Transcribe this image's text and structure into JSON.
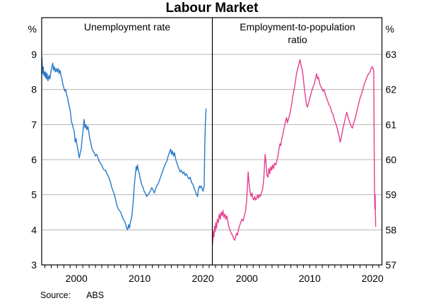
{
  "title": "Labour Market",
  "source": {
    "label": "Source:",
    "value": "ABS"
  },
  "left_axis": {
    "unit": "%",
    "ticks": [
      9,
      8,
      7,
      6,
      5,
      4,
      3
    ]
  },
  "right_axis": {
    "unit": "%",
    "ticks": [
      63,
      62,
      61,
      60,
      59,
      58,
      57
    ]
  },
  "panels": [
    {
      "title": "Unemployment rate",
      "color": "#2878c8"
    },
    {
      "title": "Employment-to-population ratio",
      "color": "#e63d8f"
    }
  ],
  "style": {
    "grid_color": "#b5b5b5",
    "axis_color": "#000000"
  },
  "chart_data": [
    {
      "type": "line",
      "title": "Unemployment rate",
      "ylabel": "%",
      "color": "#2878c8",
      "x_range": [
        1994.5,
        2021.5
      ],
      "y_range": [
        3,
        9
      ],
      "y_ticks": [
        3,
        4,
        5,
        6,
        7,
        8,
        9
      ],
      "x_label_years": [
        2000,
        2010,
        2020
      ],
      "x_tick_interval": 1,
      "grid": true,
      "points": [
        [
          1994.55,
          8.9
        ],
        [
          1994.65,
          8.45
        ],
        [
          1994.75,
          8.65
        ],
        [
          1994.85,
          8.4
        ],
        [
          1994.95,
          8.5
        ],
        [
          1995.05,
          8.35
        ],
        [
          1995.15,
          8.5
        ],
        [
          1995.25,
          8.3
        ],
        [
          1995.35,
          8.45
        ],
        [
          1995.5,
          8.25
        ],
        [
          1995.65,
          8.4
        ],
        [
          1995.8,
          8.3
        ],
        [
          1995.95,
          8.5
        ],
        [
          1996.1,
          8.65
        ],
        [
          1996.25,
          8.75
        ],
        [
          1996.35,
          8.55
        ],
        [
          1996.5,
          8.65
        ],
        [
          1996.65,
          8.5
        ],
        [
          1996.8,
          8.6
        ],
        [
          1996.95,
          8.5
        ],
        [
          1997.1,
          8.6
        ],
        [
          1997.25,
          8.45
        ],
        [
          1997.4,
          8.55
        ],
        [
          1997.55,
          8.4
        ],
        [
          1997.7,
          8.3
        ],
        [
          1997.85,
          8.15
        ],
        [
          1998.0,
          8.05
        ],
        [
          1998.15,
          7.95
        ],
        [
          1998.3,
          8.0
        ],
        [
          1998.45,
          7.85
        ],
        [
          1998.6,
          7.75
        ],
        [
          1998.75,
          7.6
        ],
        [
          1998.9,
          7.5
        ],
        [
          1999.05,
          7.35
        ],
        [
          1999.2,
          7.1
        ],
        [
          1999.35,
          7.0
        ],
        [
          1999.5,
          6.9
        ],
        [
          1999.65,
          6.8
        ],
        [
          1999.8,
          6.5
        ],
        [
          1999.95,
          6.6
        ],
        [
          2000.1,
          6.4
        ],
        [
          2000.25,
          6.25
        ],
        [
          2000.45,
          6.05
        ],
        [
          2000.6,
          6.2
        ],
        [
          2000.75,
          6.3
        ],
        [
          2000.9,
          6.6
        ],
        [
          2001.05,
          6.85
        ],
        [
          2001.2,
          7.15
        ],
        [
          2001.35,
          6.9
        ],
        [
          2001.5,
          7.0
        ],
        [
          2001.65,
          6.85
        ],
        [
          2001.8,
          6.95
        ],
        [
          2001.95,
          6.8
        ],
        [
          2002.1,
          6.6
        ],
        [
          2002.25,
          6.5
        ],
        [
          2002.4,
          6.35
        ],
        [
          2002.6,
          6.25
        ],
        [
          2002.8,
          6.2
        ],
        [
          2003.0,
          6.1
        ],
        [
          2003.2,
          6.15
        ],
        [
          2003.4,
          6.05
        ],
        [
          2003.6,
          5.95
        ],
        [
          2003.8,
          5.9
        ],
        [
          2004.0,
          5.85
        ],
        [
          2004.2,
          5.75
        ],
        [
          2004.4,
          5.7
        ],
        [
          2004.6,
          5.7
        ],
        [
          2004.8,
          5.6
        ],
        [
          2005.0,
          5.55
        ],
        [
          2005.2,
          5.45
        ],
        [
          2005.4,
          5.35
        ],
        [
          2005.6,
          5.2
        ],
        [
          2005.8,
          5.1
        ],
        [
          2006.0,
          5.0
        ],
        [
          2006.2,
          4.85
        ],
        [
          2006.4,
          4.7
        ],
        [
          2006.6,
          4.6
        ],
        [
          2006.8,
          4.55
        ],
        [
          2007.0,
          4.5
        ],
        [
          2007.2,
          4.4
        ],
        [
          2007.4,
          4.3
        ],
        [
          2007.6,
          4.25
        ],
        [
          2007.8,
          4.15
        ],
        [
          2007.95,
          4.05
        ],
        [
          2008.1,
          4.0
        ],
        [
          2008.25,
          4.15
        ],
        [
          2008.4,
          4.05
        ],
        [
          2008.55,
          4.25
        ],
        [
          2008.7,
          4.3
        ],
        [
          2008.85,
          4.55
        ],
        [
          2009.0,
          4.85
        ],
        [
          2009.15,
          5.25
        ],
        [
          2009.3,
          5.55
        ],
        [
          2009.45,
          5.8
        ],
        [
          2009.55,
          5.7
        ],
        [
          2009.65,
          5.85
        ],
        [
          2009.8,
          5.7
        ],
        [
          2009.95,
          5.6
        ],
        [
          2010.1,
          5.45
        ],
        [
          2010.25,
          5.35
        ],
        [
          2010.4,
          5.25
        ],
        [
          2010.55,
          5.2
        ],
        [
          2010.7,
          5.1
        ],
        [
          2010.9,
          5.05
        ],
        [
          2011.1,
          4.95
        ],
        [
          2011.3,
          5.0
        ],
        [
          2011.5,
          5.05
        ],
        [
          2011.7,
          5.1
        ],
        [
          2011.9,
          5.2
        ],
        [
          2012.1,
          5.15
        ],
        [
          2012.3,
          5.05
        ],
        [
          2012.5,
          5.15
        ],
        [
          2012.7,
          5.25
        ],
        [
          2012.9,
          5.3
        ],
        [
          2013.1,
          5.4
        ],
        [
          2013.3,
          5.5
        ],
        [
          2013.5,
          5.6
        ],
        [
          2013.7,
          5.7
        ],
        [
          2013.9,
          5.8
        ],
        [
          2014.1,
          5.9
        ],
        [
          2014.3,
          5.95
        ],
        [
          2014.5,
          6.1
        ],
        [
          2014.7,
          6.2
        ],
        [
          2014.9,
          6.3
        ],
        [
          2015.05,
          6.15
        ],
        [
          2015.2,
          6.25
        ],
        [
          2015.35,
          6.1
        ],
        [
          2015.5,
          6.2
        ],
        [
          2015.65,
          6.05
        ],
        [
          2015.8,
          5.95
        ],
        [
          2016.0,
          5.85
        ],
        [
          2016.2,
          5.75
        ],
        [
          2016.4,
          5.65
        ],
        [
          2016.6,
          5.7
        ],
        [
          2016.8,
          5.6
        ],
        [
          2017.0,
          5.65
        ],
        [
          2017.2,
          5.55
        ],
        [
          2017.4,
          5.6
        ],
        [
          2017.6,
          5.5
        ],
        [
          2017.8,
          5.45
        ],
        [
          2018.0,
          5.5
        ],
        [
          2018.2,
          5.35
        ],
        [
          2018.4,
          5.3
        ],
        [
          2018.6,
          5.2
        ],
        [
          2018.8,
          5.1
        ],
        [
          2019.0,
          5.0
        ],
        [
          2019.15,
          4.95
        ],
        [
          2019.3,
          5.15
        ],
        [
          2019.45,
          5.25
        ],
        [
          2019.6,
          5.2
        ],
        [
          2019.75,
          5.25
        ],
        [
          2019.9,
          5.15
        ],
        [
          2020.05,
          5.1
        ],
        [
          2020.2,
          5.25
        ],
        [
          2020.3,
          6.4
        ],
        [
          2020.4,
          7.1
        ],
        [
          2020.5,
          7.45
        ]
      ]
    },
    {
      "type": "line",
      "title": "Employment-to-population ratio",
      "ylabel": "%",
      "color": "#e63d8f",
      "x_range": [
        1994.5,
        2021.5
      ],
      "y_range": [
        57,
        63
      ],
      "y_ticks": [
        57,
        58,
        59,
        60,
        61,
        62,
        63
      ],
      "x_label_years": [
        2000,
        2010,
        2020
      ],
      "x_tick_interval": 1,
      "grid": true,
      "points": [
        [
          1994.55,
          57.6
        ],
        [
          1994.65,
          57.95
        ],
        [
          1994.75,
          57.8
        ],
        [
          1994.85,
          58.1
        ],
        [
          1994.95,
          57.95
        ],
        [
          1995.05,
          58.2
        ],
        [
          1995.15,
          58.05
        ],
        [
          1995.3,
          58.3
        ],
        [
          1995.45,
          58.2
        ],
        [
          1995.6,
          58.45
        ],
        [
          1995.75,
          58.3
        ],
        [
          1995.9,
          58.5
        ],
        [
          1996.05,
          58.4
        ],
        [
          1996.2,
          58.55
        ],
        [
          1996.35,
          58.35
        ],
        [
          1996.5,
          58.45
        ],
        [
          1996.65,
          58.3
        ],
        [
          1996.8,
          58.4
        ],
        [
          1996.95,
          58.25
        ],
        [
          1997.1,
          58.1
        ],
        [
          1997.3,
          58.0
        ],
        [
          1997.5,
          57.9
        ],
        [
          1997.7,
          57.85
        ],
        [
          1997.9,
          57.75
        ],
        [
          1998.05,
          57.7
        ],
        [
          1998.2,
          57.8
        ],
        [
          1998.35,
          57.9
        ],
        [
          1998.5,
          57.85
        ],
        [
          1998.65,
          58.0
        ],
        [
          1998.8,
          58.1
        ],
        [
          1999.0,
          58.2
        ],
        [
          1999.2,
          58.3
        ],
        [
          1999.4,
          58.25
        ],
        [
          1999.6,
          58.4
        ],
        [
          1999.8,
          58.55
        ],
        [
          1999.95,
          58.8
        ],
        [
          2000.1,
          59.3
        ],
        [
          2000.2,
          59.65
        ],
        [
          2000.35,
          59.3
        ],
        [
          2000.5,
          59.1
        ],
        [
          2000.65,
          58.95
        ],
        [
          2000.8,
          59.05
        ],
        [
          2000.95,
          58.9
        ],
        [
          2001.1,
          58.85
        ],
        [
          2001.25,
          58.95
        ],
        [
          2001.4,
          58.85
        ],
        [
          2001.55,
          58.9
        ],
        [
          2001.7,
          59.0
        ],
        [
          2001.85,
          58.9
        ],
        [
          2002.0,
          59.0
        ],
        [
          2002.15,
          58.95
        ],
        [
          2002.3,
          59.05
        ],
        [
          2002.5,
          59.15
        ],
        [
          2002.7,
          59.5
        ],
        [
          2002.9,
          60.15
        ],
        [
          2003.05,
          59.9
        ],
        [
          2003.2,
          59.55
        ],
        [
          2003.35,
          59.5
        ],
        [
          2003.5,
          59.75
        ],
        [
          2003.65,
          59.6
        ],
        [
          2003.8,
          59.8
        ],
        [
          2003.95,
          59.7
        ],
        [
          2004.1,
          59.85
        ],
        [
          2004.25,
          59.75
        ],
        [
          2004.4,
          59.9
        ],
        [
          2004.6,
          59.85
        ],
        [
          2004.8,
          60.0
        ],
        [
          2004.95,
          60.1
        ],
        [
          2005.1,
          60.3
        ],
        [
          2005.25,
          60.45
        ],
        [
          2005.4,
          60.4
        ],
        [
          2005.55,
          60.6
        ],
        [
          2005.7,
          60.7
        ],
        [
          2005.85,
          60.85
        ],
        [
          2006.0,
          60.95
        ],
        [
          2006.15,
          61.1
        ],
        [
          2006.3,
          61.2
        ],
        [
          2006.45,
          61.05
        ],
        [
          2006.6,
          61.15
        ],
        [
          2006.75,
          61.25
        ],
        [
          2006.9,
          61.35
        ],
        [
          2007.1,
          61.55
        ],
        [
          2007.3,
          61.8
        ],
        [
          2007.5,
          62.0
        ],
        [
          2007.7,
          62.2
        ],
        [
          2007.9,
          62.45
        ],
        [
          2008.1,
          62.6
        ],
        [
          2008.3,
          62.75
        ],
        [
          2008.45,
          62.85
        ],
        [
          2008.6,
          62.7
        ],
        [
          2008.75,
          62.6
        ],
        [
          2008.9,
          62.45
        ],
        [
          2009.05,
          62.2
        ],
        [
          2009.2,
          61.95
        ],
        [
          2009.35,
          61.75
        ],
        [
          2009.5,
          61.55
        ],
        [
          2009.65,
          61.5
        ],
        [
          2009.8,
          61.6
        ],
        [
          2009.95,
          61.7
        ],
        [
          2010.1,
          61.8
        ],
        [
          2010.3,
          61.95
        ],
        [
          2010.5,
          62.05
        ],
        [
          2010.7,
          62.15
        ],
        [
          2010.9,
          62.3
        ],
        [
          2011.1,
          62.45
        ],
        [
          2011.25,
          62.3
        ],
        [
          2011.4,
          62.35
        ],
        [
          2011.55,
          62.2
        ],
        [
          2011.7,
          62.1
        ],
        [
          2011.9,
          62.05
        ],
        [
          2012.1,
          61.95
        ],
        [
          2012.3,
          62.0
        ],
        [
          2012.5,
          61.85
        ],
        [
          2012.7,
          61.75
        ],
        [
          2012.9,
          61.65
        ],
        [
          2013.1,
          61.55
        ],
        [
          2013.3,
          61.5
        ],
        [
          2013.5,
          61.35
        ],
        [
          2013.7,
          61.3
        ],
        [
          2013.9,
          61.15
        ],
        [
          2014.1,
          61.05
        ],
        [
          2014.3,
          60.95
        ],
        [
          2014.5,
          60.8
        ],
        [
          2014.7,
          60.65
        ],
        [
          2014.85,
          60.5
        ],
        [
          2015.0,
          60.6
        ],
        [
          2015.15,
          60.75
        ],
        [
          2015.3,
          60.9
        ],
        [
          2015.5,
          61.05
        ],
        [
          2015.7,
          61.2
        ],
        [
          2015.9,
          61.35
        ],
        [
          2016.05,
          61.25
        ],
        [
          2016.2,
          61.15
        ],
        [
          2016.4,
          61.05
        ],
        [
          2016.6,
          60.95
        ],
        [
          2016.8,
          60.9
        ],
        [
          2017.0,
          61.05
        ],
        [
          2017.2,
          61.15
        ],
        [
          2017.4,
          61.3
        ],
        [
          2017.6,
          61.45
        ],
        [
          2017.8,
          61.6
        ],
        [
          2018.0,
          61.75
        ],
        [
          2018.2,
          61.85
        ],
        [
          2018.4,
          61.95
        ],
        [
          2018.6,
          62.1
        ],
        [
          2018.8,
          62.2
        ],
        [
          2019.0,
          62.3
        ],
        [
          2019.2,
          62.4
        ],
        [
          2019.4,
          62.45
        ],
        [
          2019.6,
          62.5
        ],
        [
          2019.8,
          62.6
        ],
        [
          2019.95,
          62.65
        ],
        [
          2020.1,
          62.6
        ],
        [
          2020.2,
          62.5
        ],
        [
          2020.3,
          59.4
        ],
        [
          2020.36,
          58.6
        ],
        [
          2020.42,
          59.0
        ],
        [
          2020.5,
          58.1
        ]
      ]
    }
  ]
}
